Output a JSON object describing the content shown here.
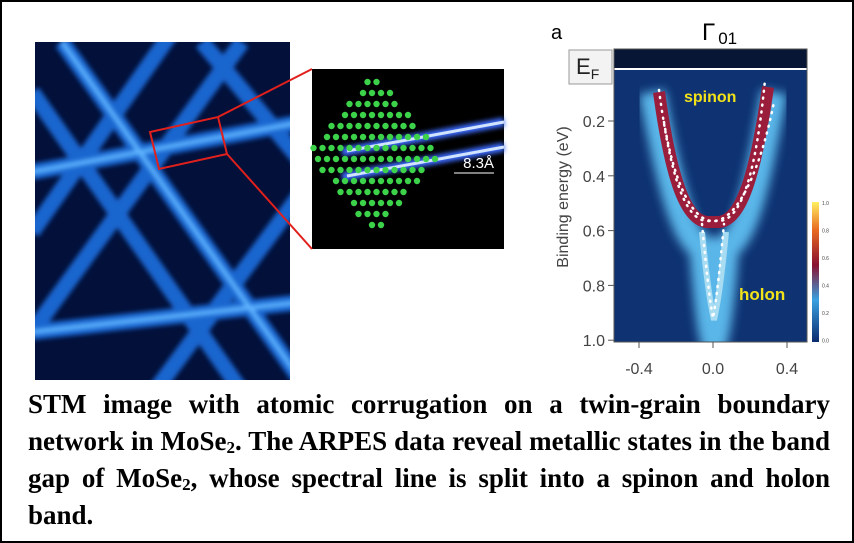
{
  "figure": {
    "panel_label": "a",
    "arpes": {
      "title": "Γ",
      "title_sub": "01",
      "fermi_label": "E",
      "fermi_sub": "F",
      "y_axis_label": "Binding energy (eV)",
      "yticks": [
        "0.2",
        "0.4",
        "0.6",
        "0.8",
        "1.0"
      ],
      "xticks": [
        "-0.4",
        "0.0",
        "0.4"
      ],
      "colorbar_ticks": [
        "1.0",
        "0.8",
        "0.6",
        "0.4",
        "0.2",
        "0.0"
      ],
      "band_labels": {
        "upper": "spinon",
        "lower": "holon"
      }
    },
    "inset": {
      "scale": "8.3Å"
    }
  },
  "caption": {
    "text_1": "STM image with atomic corrugation on a twin-grain boundary network in MoSe",
    "sub_1": "2",
    "text_2": ". The ARPES data reveal metallic states in the band gap of MoSe",
    "sub_2": "2",
    "text_3": ", whose spectral line is split into a spinon and holon band."
  }
}
